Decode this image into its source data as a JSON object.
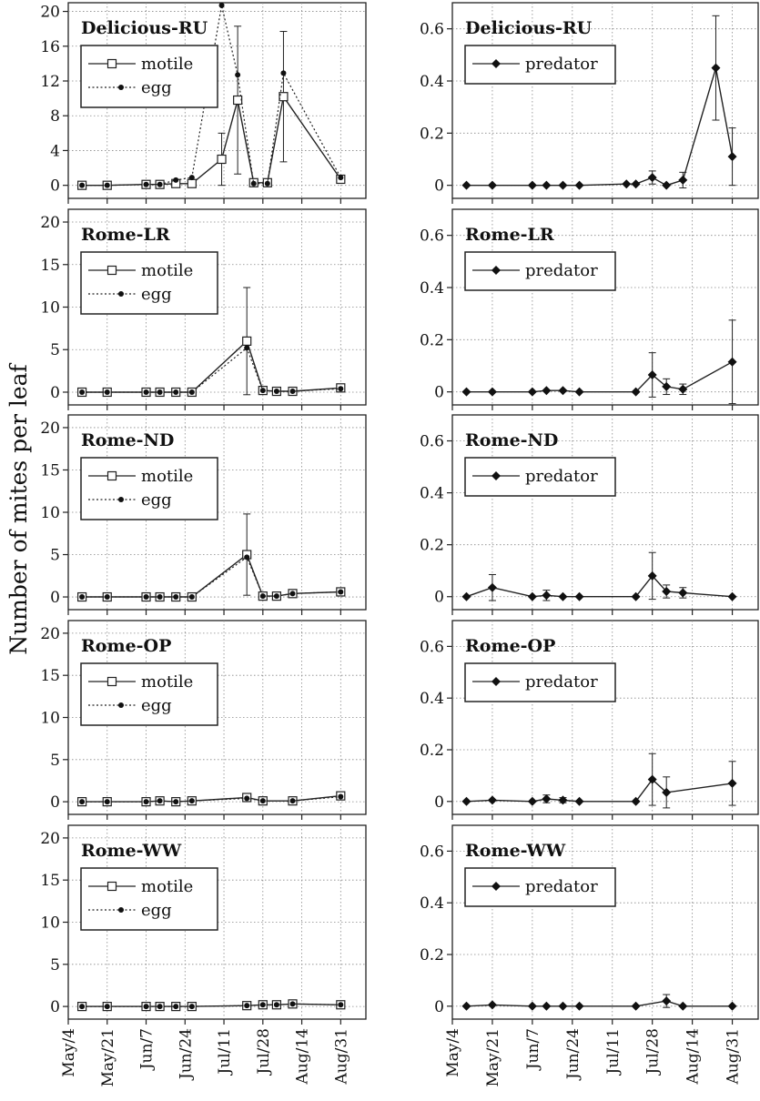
{
  "y_axis_label": "Number of mites per leaf",
  "chart_data": [
    {
      "type": "line",
      "column": "left",
      "title": "Delicious-RU",
      "x": [
        "May/10",
        "May/21",
        "Jun/7",
        "Jun/13",
        "Jun/20",
        "Jun/27",
        "Jul/10",
        "Jul/17",
        "Jul/24",
        "Jul/30",
        "Aug/6",
        "Aug/31"
      ],
      "x_ticks": [
        "May/4",
        "May/21",
        "Jun/7",
        "Jun/24",
        "Jul/11",
        "Jul/28",
        "Aug/14",
        "Aug/31"
      ],
      "ylim": [
        -1.5,
        21
      ],
      "yticks": [
        0,
        4,
        8,
        12,
        16,
        20
      ],
      "grid": true,
      "legend": "top-left",
      "series": [
        {
          "name": "motile",
          "marker": "open-square",
          "line": "solid",
          "values": [
            0,
            0,
            0.1,
            0.1,
            0.2,
            0.2,
            3.0,
            9.8,
            0.3,
            0.3,
            10.2,
            0.7
          ],
          "errors": [
            0,
            0,
            0,
            0,
            0,
            0,
            3.0,
            8.5,
            0,
            0,
            7.5,
            0
          ]
        },
        {
          "name": "egg",
          "marker": "filled-dot",
          "line": "dotted",
          "values": [
            0,
            0,
            0.1,
            0.1,
            0.6,
            0.9,
            20.7,
            12.7,
            0.2,
            0.2,
            12.9,
            0.9
          ],
          "errors": [
            0,
            0,
            0,
            0,
            0,
            0,
            0,
            0,
            0,
            0,
            0,
            0
          ]
        }
      ]
    },
    {
      "type": "line",
      "column": "right",
      "title": "Delicious-RU",
      "x": [
        "May/10",
        "May/21",
        "Jun/7",
        "Jun/13",
        "Jun/20",
        "Jun/27",
        "Jul/17",
        "Jul/21",
        "Jul/28",
        "Aug/3",
        "Aug/10",
        "Aug/24",
        "Aug/31"
      ],
      "x_ticks": [
        "May/4",
        "May/21",
        "Jun/7",
        "Jun/24",
        "Jul/11",
        "Jul/28",
        "Aug/14",
        "Aug/31"
      ],
      "ylim": [
        -0.05,
        0.7
      ],
      "yticks": [
        0,
        0.2,
        0.4,
        0.6
      ],
      "grid": true,
      "legend": "top-left",
      "series": [
        {
          "name": "predator",
          "marker": "filled-diamond",
          "line": "solid",
          "values": [
            0,
            0,
            0,
            0,
            0,
            0,
            0.005,
            0.005,
            0.03,
            0,
            0.02,
            0.45,
            0.11
          ],
          "errors": [
            0,
            0,
            0,
            0,
            0,
            0,
            0,
            0,
            0.025,
            0,
            0.03,
            0.2,
            0.11
          ]
        }
      ]
    },
    {
      "type": "line",
      "column": "left",
      "title": "Rome-LR",
      "x": [
        "May/10",
        "May/21",
        "Jun/7",
        "Jun/13",
        "Jun/20",
        "Jun/27",
        "Jul/21",
        "Jul/28",
        "Aug/3",
        "Aug/10",
        "Aug/31"
      ],
      "x_ticks": [
        "May/4",
        "May/21",
        "Jun/7",
        "Jun/24",
        "Jul/11",
        "Jul/28",
        "Aug/14",
        "Aug/31"
      ],
      "ylim": [
        -1.5,
        21.5
      ],
      "yticks": [
        0,
        5,
        10,
        15,
        20
      ],
      "grid": true,
      "legend": "top-left",
      "series": [
        {
          "name": "motile",
          "marker": "open-square",
          "line": "solid",
          "values": [
            0,
            0,
            0,
            0,
            0,
            0,
            6.0,
            0.2,
            0.1,
            0.1,
            0.5
          ],
          "errors": [
            0,
            0,
            0,
            0,
            0,
            0,
            6.3,
            0,
            0,
            0,
            0
          ]
        },
        {
          "name": "egg",
          "marker": "filled-dot",
          "line": "dotted",
          "values": [
            0,
            0,
            0,
            0,
            0,
            0,
            5.2,
            0.2,
            0.1,
            0.1,
            0.4
          ],
          "errors": [
            0,
            0,
            0,
            0,
            0,
            0,
            0,
            0,
            0,
            0,
            0
          ]
        }
      ]
    },
    {
      "type": "line",
      "column": "right",
      "title": "Rome-LR",
      "x": [
        "May/10",
        "May/21",
        "Jun/7",
        "Jun/13",
        "Jun/20",
        "Jun/27",
        "Jul/21",
        "Jul/28",
        "Aug/3",
        "Aug/10",
        "Aug/31"
      ],
      "x_ticks": [
        "May/4",
        "May/21",
        "Jun/7",
        "Jun/24",
        "Jul/11",
        "Jul/28",
        "Aug/14",
        "Aug/31"
      ],
      "ylim": [
        -0.05,
        0.7
      ],
      "yticks": [
        0,
        0.2,
        0.4,
        0.6
      ],
      "grid": true,
      "legend": "top-left",
      "series": [
        {
          "name": "predator",
          "marker": "filled-diamond",
          "line": "solid",
          "values": [
            0,
            0,
            0,
            0.005,
            0.005,
            0,
            0,
            0.065,
            0.02,
            0.01,
            0.115
          ],
          "errors": [
            0,
            0,
            0,
            0,
            0,
            0,
            0,
            0.085,
            0.03,
            0.02,
            0.16
          ]
        }
      ]
    },
    {
      "type": "line",
      "column": "left",
      "title": "Rome-ND",
      "x": [
        "May/10",
        "May/21",
        "Jun/7",
        "Jun/13",
        "Jun/20",
        "Jun/27",
        "Jul/21",
        "Jul/28",
        "Aug/3",
        "Aug/10",
        "Aug/31"
      ],
      "x_ticks": [
        "May/4",
        "May/21",
        "Jun/7",
        "Jun/24",
        "Jul/11",
        "Jul/28",
        "Aug/14",
        "Aug/31"
      ],
      "ylim": [
        -1.5,
        21.5
      ],
      "yticks": [
        0,
        5,
        10,
        15,
        20
      ],
      "grid": true,
      "legend": "top-left",
      "series": [
        {
          "name": "motile",
          "marker": "open-square",
          "line": "solid",
          "values": [
            0,
            0,
            0,
            0,
            0,
            0,
            5.0,
            0.1,
            0.1,
            0.4,
            0.6
          ],
          "errors": [
            0,
            0,
            0,
            0,
            0,
            0,
            4.8,
            0,
            0,
            0,
            0
          ]
        },
        {
          "name": "egg",
          "marker": "filled-dot",
          "line": "dotted",
          "values": [
            0,
            0,
            0,
            0,
            0,
            0,
            4.7,
            0.1,
            0.1,
            0.4,
            0.6
          ],
          "errors": [
            0,
            0,
            0,
            0,
            0,
            0,
            0,
            0,
            0,
            0,
            0
          ]
        }
      ]
    },
    {
      "type": "line",
      "column": "right",
      "title": "Rome-ND",
      "x": [
        "May/10",
        "May/21",
        "Jun/7",
        "Jun/13",
        "Jun/20",
        "Jun/27",
        "Jul/21",
        "Jul/28",
        "Aug/3",
        "Aug/10",
        "Aug/31"
      ],
      "x_ticks": [
        "May/4",
        "May/21",
        "Jun/7",
        "Jun/24",
        "Jul/11",
        "Jul/28",
        "Aug/14",
        "Aug/31"
      ],
      "ylim": [
        -0.05,
        0.7
      ],
      "yticks": [
        0,
        0.2,
        0.4,
        0.6
      ],
      "grid": true,
      "legend": "top-left",
      "series": [
        {
          "name": "predator",
          "marker": "filled-diamond",
          "line": "solid",
          "values": [
            0,
            0.035,
            0,
            0.005,
            0,
            0,
            0,
            0.08,
            0.02,
            0.015,
            0
          ],
          "errors": [
            0,
            0.05,
            0,
            0.02,
            0,
            0,
            0,
            0.09,
            0.025,
            0.02,
            0
          ]
        }
      ]
    },
    {
      "type": "line",
      "column": "left",
      "title": "Rome-OP",
      "x": [
        "May/10",
        "May/21",
        "Jun/7",
        "Jun/13",
        "Jun/20",
        "Jun/27",
        "Jul/21",
        "Jul/28",
        "Aug/10",
        "Aug/31"
      ],
      "x_ticks": [
        "May/4",
        "May/21",
        "Jun/7",
        "Jun/24",
        "Jul/11",
        "Jul/28",
        "Aug/14",
        "Aug/31"
      ],
      "ylim": [
        -1.5,
        21.5
      ],
      "yticks": [
        0,
        5,
        10,
        15,
        20
      ],
      "grid": true,
      "legend": "top-left",
      "series": [
        {
          "name": "motile",
          "marker": "open-square",
          "line": "solid",
          "values": [
            0,
            0,
            0,
            0.1,
            0,
            0.1,
            0.5,
            0.1,
            0.1,
            0.7
          ],
          "errors": [
            0,
            0,
            0,
            0,
            0,
            0,
            0,
            0,
            0,
            0
          ]
        },
        {
          "name": "egg",
          "marker": "filled-dot",
          "line": "dotted",
          "values": [
            0,
            0,
            0,
            0.1,
            0,
            0.1,
            0.4,
            0.1,
            0.1,
            0.6
          ],
          "errors": [
            0,
            0,
            0,
            0,
            0,
            0,
            0,
            0,
            0,
            0
          ]
        }
      ]
    },
    {
      "type": "line",
      "column": "right",
      "title": "Rome-OP",
      "x": [
        "May/10",
        "May/21",
        "Jun/7",
        "Jun/13",
        "Jun/20",
        "Jun/27",
        "Jul/21",
        "Jul/28",
        "Aug/3",
        "Aug/31"
      ],
      "x_ticks": [
        "May/4",
        "May/21",
        "Jun/7",
        "Jun/24",
        "Jul/11",
        "Jul/28",
        "Aug/14",
        "Aug/31"
      ],
      "ylim": [
        -0.05,
        0.7
      ],
      "yticks": [
        0,
        0.2,
        0.4,
        0.6
      ],
      "grid": true,
      "legend": "top-left",
      "series": [
        {
          "name": "predator",
          "marker": "filled-diamond",
          "line": "solid",
          "values": [
            0,
            0.005,
            0,
            0.01,
            0.005,
            0,
            0,
            0.085,
            0.035,
            0.07
          ],
          "errors": [
            0,
            0,
            0,
            0.015,
            0.01,
            0,
            0,
            0.1,
            0.06,
            0.085
          ]
        }
      ]
    },
    {
      "type": "line",
      "column": "left",
      "title": "Rome-WW",
      "x": [
        "May/10",
        "May/21",
        "Jun/7",
        "Jun/13",
        "Jun/20",
        "Jun/27",
        "Jul/21",
        "Jul/28",
        "Aug/3",
        "Aug/10",
        "Aug/31"
      ],
      "x_ticks": [
        "May/4",
        "May/21",
        "Jun/7",
        "Jun/24",
        "Jul/11",
        "Jul/28",
        "Aug/14",
        "Aug/31"
      ],
      "ylim": [
        -1.5,
        21.5
      ],
      "yticks": [
        0,
        5,
        10,
        15,
        20
      ],
      "grid": true,
      "legend": "top-left",
      "series": [
        {
          "name": "motile",
          "marker": "open-square",
          "line": "solid",
          "values": [
            0,
            0,
            0,
            0,
            0,
            0,
            0.1,
            0.2,
            0.2,
            0.3,
            0.2
          ],
          "errors": [
            0,
            0,
            0,
            0,
            0,
            0,
            0,
            0,
            0,
            0,
            0
          ]
        },
        {
          "name": "egg",
          "marker": "filled-dot",
          "line": "dotted",
          "values": [
            0,
            0,
            0,
            0,
            0,
            0,
            0.1,
            0.2,
            0.2,
            0.3,
            0.2
          ],
          "errors": [
            0,
            0,
            0,
            0,
            0,
            0,
            0,
            0,
            0,
            0,
            0
          ]
        }
      ]
    },
    {
      "type": "line",
      "column": "right",
      "title": "Rome-WW",
      "x": [
        "May/10",
        "May/21",
        "Jun/7",
        "Jun/13",
        "Jun/20",
        "Jun/27",
        "Jul/21",
        "Aug/3",
        "Aug/10",
        "Aug/31"
      ],
      "x_ticks": [
        "May/4",
        "May/21",
        "Jun/7",
        "Jun/24",
        "Jul/11",
        "Jul/28",
        "Aug/14",
        "Aug/31"
      ],
      "ylim": [
        -0.05,
        0.7
      ],
      "yticks": [
        0,
        0.2,
        0.4,
        0.6
      ],
      "grid": true,
      "legend": "top-left",
      "series": [
        {
          "name": "predator",
          "marker": "filled-diamond",
          "line": "solid",
          "values": [
            0,
            0.005,
            0,
            0,
            0,
            0,
            0,
            0.02,
            0,
            0
          ],
          "errors": [
            0,
            0,
            0,
            0,
            0,
            0,
            0,
            0.025,
            0,
            0
          ]
        }
      ]
    }
  ]
}
